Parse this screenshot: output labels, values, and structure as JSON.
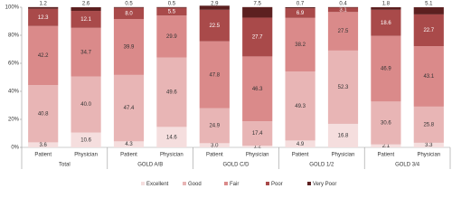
{
  "chart_data": {
    "type": "stacked-bar",
    "categories": [
      "Patient",
      "Physician",
      "Patient",
      "Physician",
      "Patient",
      "Physician",
      "Patient",
      "Physician",
      "Patient",
      "Physician"
    ],
    "groups": [
      "Total",
      "GOLD A/B",
      "GOLD C/D",
      "GOLD 1/2",
      "GOLD 3/4"
    ],
    "series": [
      {
        "name": "Excellent",
        "color": "#f5dede",
        "values": [
          3.6,
          10.6,
          4.3,
          14.6,
          3.0,
          1.2,
          4.9,
          16.8,
          2.1,
          3.3
        ],
        "value_labels": [
          "3.6",
          "10.6",
          "4.3",
          "14.6",
          "3.0",
          "1.2",
          "4.9",
          "16.8",
          "2.1",
          "3.3"
        ]
      },
      {
        "name": "Good",
        "color": "#e8b5b5",
        "values": [
          40.8,
          40.0,
          47.4,
          49.6,
          24.9,
          17.4,
          49.3,
          52.3,
          30.6,
          25.8
        ],
        "value_labels": [
          "40.8",
          "40.0",
          "47.4",
          "49.6",
          "24.9",
          "17.4",
          "49.3",
          "52.3",
          "30.6",
          "25.8"
        ]
      },
      {
        "name": "Fair",
        "color": "#da8a8a",
        "values": [
          42.2,
          34.7,
          39.9,
          29.9,
          47.8,
          46.3,
          38.2,
          27.5,
          46.9,
          43.1
        ],
        "value_labels": [
          "42.2",
          "34.7",
          "39.9",
          "29.9",
          "47.8",
          "46.3",
          "38.2",
          "27.5",
          "46.9",
          "43.1"
        ]
      },
      {
        "name": "Poor",
        "color": "#a94a4a",
        "values": [
          12.3,
          12.1,
          8.0,
          5.5,
          22.5,
          27.7,
          6.9,
          3.1,
          18.6,
          22.7
        ],
        "value_labels": [
          "12.3",
          "12.1",
          "8.0",
          "5.5",
          "22.5",
          "27.7",
          "6.9",
          "3.1",
          "18.6",
          "22.7"
        ]
      },
      {
        "name": "Very Poor",
        "color": "#5c2020",
        "values": [
          1.2,
          2.6,
          0.5,
          0.5,
          2.9,
          7.5,
          0.7,
          0.4,
          1.8,
          5.1
        ],
        "value_labels": [
          "1.2",
          "2.6",
          "0.5",
          "0.5",
          "2.9",
          "7.5",
          "0.7",
          "0.4",
          "1.8",
          "5.1"
        ]
      }
    ],
    "ylim": [
      0,
      100
    ],
    "yticks": [
      {
        "value": 0,
        "label": "0%"
      },
      {
        "value": 20,
        "label": "20%"
      },
      {
        "value": 40,
        "label": "40%"
      },
      {
        "value": 60,
        "label": "60%"
      },
      {
        "value": 80,
        "label": "80%"
      },
      {
        "value": 100,
        "label": "100%"
      }
    ],
    "legend": "bottom"
  }
}
